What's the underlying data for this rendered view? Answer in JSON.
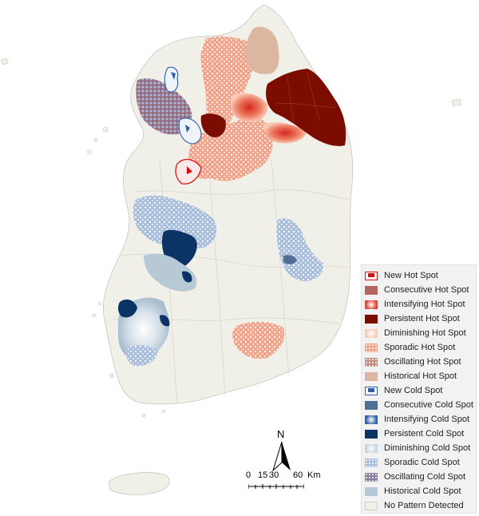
{
  "legend": {
    "items": [
      {
        "label": "New Hot Spot",
        "swatch": "#d40f0f",
        "style": "new-hot"
      },
      {
        "label": "Consecutive Hot Spot",
        "swatch": "#b5655f",
        "style": "solid"
      },
      {
        "label": "Intensifying Hot Spot",
        "swatch": "#e0453a",
        "style": "radial-hot"
      },
      {
        "label": "Persistent Hot Spot",
        "swatch": "#7a0c00",
        "style": "solid"
      },
      {
        "label": "Diminishing Hot Spot",
        "swatch": "#f6cdb5",
        "style": "radial-light-hot"
      },
      {
        "label": "Sporadic Hot Spot",
        "swatch": "#f2a48a",
        "style": "dots-hot"
      },
      {
        "label": "Oscillating Hot Spot",
        "swatch": "#c08d83",
        "style": "dots-dark"
      },
      {
        "label": "Historical Hot Spot",
        "swatch": "#dbb6a0",
        "style": "solid"
      },
      {
        "label": "New Cold Spot",
        "swatch": "#2f5fa8",
        "style": "new-cold"
      },
      {
        "label": "Consecutive Cold Spot",
        "swatch": "#4f6f95",
        "style": "solid"
      },
      {
        "label": "Intensifying Cold Spot",
        "swatch": "#2f62a6",
        "style": "radial-cold"
      },
      {
        "label": "Persistent Cold Spot",
        "swatch": "#0b3366",
        "style": "solid"
      },
      {
        "label": "Diminishing Cold Spot",
        "swatch": "#c8d6e2",
        "style": "radial-light-cold"
      },
      {
        "label": "Sporadic Cold Spot",
        "swatch": "#a9bfdc",
        "style": "dots-cold"
      },
      {
        "label": "Oscillating Cold Spot",
        "swatch": "#8a7f9a",
        "style": "dots-dark"
      },
      {
        "label": "Historical Cold Spot",
        "swatch": "#b8c9d6",
        "style": "solid"
      },
      {
        "label": "No Pattern Detected",
        "swatch": "#f0f0e8",
        "style": "solid"
      }
    ]
  },
  "north_arrow": {
    "letter": "N"
  },
  "scale_bar": {
    "ticks": [
      "0",
      "15",
      "30",
      "60"
    ],
    "unit": "Km"
  },
  "colors": {
    "land": "#f0f0e8",
    "boundary": "#c6c6c0",
    "persistent_hot": "#7a0c00",
    "sporadic_hot": "#f2a48a",
    "historical_hot": "#dbb6a0",
    "intensifying_hot": "#e0453a",
    "new_hot": "#d40f0f",
    "persistent_cold": "#0b3366",
    "sporadic_cold": "#a9bfdc",
    "diminishing_cold": "#c8d6e2",
    "historical_cold": "#b8c9d6",
    "oscillating": "#9a7f92"
  }
}
